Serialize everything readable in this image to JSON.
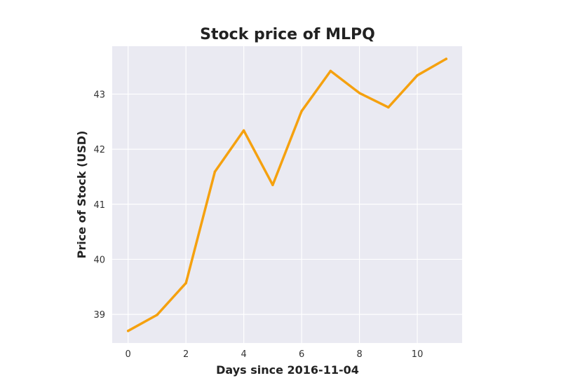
{
  "chart_data": {
    "type": "line",
    "title": "Stock price of MLPQ",
    "xlabel": "Days since 2016-11-04",
    "ylabel": "Price of Stock (USD)",
    "x": [
      0,
      1,
      2,
      3,
      4,
      5,
      6,
      7,
      8,
      9,
      10,
      11
    ],
    "series": [
      {
        "values": [
          38.7,
          38.99,
          39.57,
          41.59,
          42.34,
          41.35,
          42.69,
          43.42,
          43.02,
          42.76,
          43.34,
          43.64
        ]
      }
    ],
    "xlim": [
      -0.55,
      11.55
    ],
    "ylim": [
      38.48,
      43.87
    ],
    "xticks": [
      0,
      2,
      4,
      6,
      8,
      10
    ],
    "yticks": [
      39,
      40,
      41,
      42,
      43
    ],
    "grid": true,
    "colors": {
      "line": "#f5a10f",
      "plot_bg": "#eaeaf2",
      "grid": "#ffffff"
    }
  }
}
